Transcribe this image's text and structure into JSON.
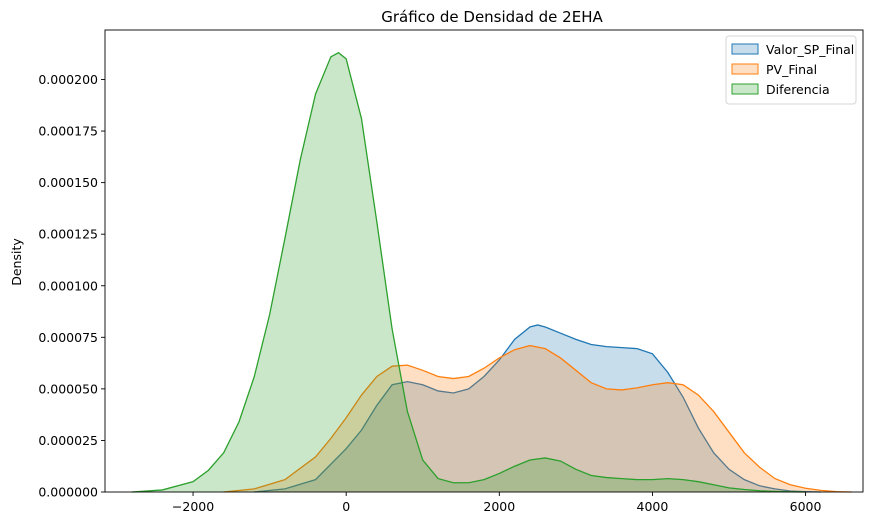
{
  "chart_data": {
    "type": "area",
    "title": "Gráfico de Densidad de 2EHA",
    "xlabel": "",
    "ylabel": "Density",
    "xlim": [
      -3150,
      6750
    ],
    "ylim": [
      0,
      0.000224
    ],
    "x_ticks": [
      -2000,
      0,
      2000,
      4000,
      6000
    ],
    "x_tick_labels": [
      "−2000",
      "0",
      "2000",
      "4000",
      "6000"
    ],
    "y_ticks": [
      0,
      2.5e-05,
      5e-05,
      7.5e-05,
      0.0001,
      0.000125,
      0.00015,
      0.000175,
      0.0002
    ],
    "y_tick_labels": [
      "0.000000",
      "0.000025",
      "0.000050",
      "0.000075",
      "0.000100",
      "0.000125",
      "0.000150",
      "0.000175",
      "0.000200"
    ],
    "grid": false,
    "legend_position": "top-right",
    "series": [
      {
        "name": "Valor_SP_Final",
        "color": "#1f77b4",
        "fill": "#b9d3ea",
        "x": [
          -1200,
          -800,
          -400,
          0,
          200,
          400,
          600,
          800,
          1000,
          1200,
          1400,
          1600,
          1800,
          2000,
          2200,
          2400,
          2500,
          2600,
          2800,
          3000,
          3200,
          3400,
          3600,
          3800,
          4000,
          4200,
          4400,
          4600,
          4800,
          5000,
          5200,
          5400,
          5600,
          5800,
          6000,
          6200
        ],
        "y": [
          0,
          1.5e-06,
          6e-06,
          2.1e-05,
          3e-05,
          4.2e-05,
          5.2e-05,
          5.35e-05,
          5.2e-05,
          4.9e-05,
          4.8e-05,
          5e-05,
          5.6e-05,
          6.4e-05,
          7.4e-05,
          8e-05,
          8.1e-05,
          8e-05,
          7.7e-05,
          7.4e-05,
          7.15e-05,
          7.05e-05,
          7e-05,
          6.95e-05,
          6.7e-05,
          5.8e-05,
          4.6e-05,
          3.1e-05,
          1.9e-05,
          1.1e-05,
          6e-06,
          3e-06,
          1.5e-06,
          5e-07,
          2e-07,
          0
        ]
      },
      {
        "name": "PV_Final",
        "color": "#ff7f0e",
        "fill": "#fdd3b0",
        "x": [
          -1600,
          -1200,
          -800,
          -400,
          -200,
          0,
          200,
          400,
          600,
          800,
          1000,
          1200,
          1400,
          1600,
          1800,
          2000,
          2200,
          2400,
          2600,
          2800,
          3000,
          3200,
          3400,
          3600,
          3800,
          4000,
          4200,
          4400,
          4600,
          4800,
          5000,
          5200,
          5400,
          5600,
          5800,
          6000,
          6200,
          6400,
          6600
        ],
        "y": [
          0,
          1.5e-06,
          6e-06,
          1.7e-05,
          2.6e-05,
          3.6e-05,
          4.7e-05,
          5.6e-05,
          6.1e-05,
          6.15e-05,
          5.9e-05,
          5.6e-05,
          5.5e-05,
          5.6e-05,
          6e-05,
          6.5e-05,
          6.9e-05,
          7.1e-05,
          6.95e-05,
          6.5e-05,
          5.9e-05,
          5.3e-05,
          5e-05,
          4.95e-05,
          5.05e-05,
          5.2e-05,
          5.3e-05,
          5.2e-05,
          4.7e-05,
          3.9e-05,
          2.9e-05,
          1.9e-05,
          1.2e-05,
          6.5e-06,
          3.5e-06,
          1.8e-06,
          8e-07,
          2e-07,
          0
        ]
      },
      {
        "name": "Diferencia",
        "color": "#2ca02c",
        "fill": "#c9e6c8",
        "x": [
          -2800,
          -2400,
          -2000,
          -1800,
          -1600,
          -1400,
          -1200,
          -1000,
          -800,
          -600,
          -400,
          -200,
          -100,
          0,
          200,
          400,
          600,
          800,
          1000,
          1200,
          1400,
          1600,
          1800,
          2000,
          2200,
          2400,
          2600,
          2800,
          3000,
          3200,
          3400,
          3600,
          3800,
          4000,
          4200,
          4400,
          4600,
          4800,
          5000,
          5200,
          5400,
          5600,
          5800,
          6000
        ],
        "y": [
          0,
          1e-06,
          5e-06,
          1.05e-05,
          1.9e-05,
          3.4e-05,
          5.6e-05,
          8.6e-05,
          0.000123,
          0.000161,
          0.000193,
          0.000211,
          0.000213,
          0.00021,
          0.000181,
          0.000131,
          7.9e-05,
          3.9e-05,
          1.55e-05,
          6.5e-06,
          4.5e-06,
          4.5e-06,
          6e-06,
          9e-06,
          1.25e-05,
          1.55e-05,
          1.65e-05,
          1.5e-05,
          1.1e-05,
          8e-06,
          7e-06,
          6.5e-06,
          6e-06,
          6e-06,
          6.5e-06,
          6e-06,
          5e-06,
          3.5e-06,
          2e-06,
          1.2e-06,
          6e-07,
          3e-07,
          1e-07,
          0
        ]
      }
    ]
  }
}
